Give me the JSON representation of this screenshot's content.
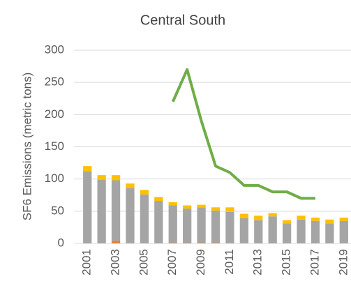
{
  "chart_data": {
    "type": "bar",
    "stacked": true,
    "title": "Central South",
    "y_label": "SF6 Emissions (metric tons)",
    "categories": [
      "2001",
      null,
      "2003",
      null,
      "2005",
      null,
      "2007",
      null,
      "2009",
      null,
      "2011",
      null,
      "2013",
      null,
      "2015",
      null,
      "2017",
      null,
      "2019"
    ],
    "ylim": [
      0,
      300
    ],
    "yticks": [
      0,
      50,
      100,
      150,
      200,
      250,
      300
    ],
    "grid": true,
    "series": [
      {
        "type": "bar",
        "color": "#ed7d31",
        "values": [
          0,
          0,
          4,
          0,
          0,
          0,
          1,
          1,
          1,
          1,
          0,
          0,
          0,
          0,
          0,
          0,
          0,
          0,
          0
        ]
      },
      {
        "type": "bar",
        "color": "#a5a5a5",
        "values": [
          112,
          99,
          94,
          86,
          76,
          66,
          58,
          53,
          55,
          50,
          49,
          39,
          36,
          42,
          31,
          37,
          35,
          31,
          35
        ]
      },
      {
        "type": "bar",
        "color": "#ffc000",
        "values": [
          8,
          7,
          8,
          7,
          7,
          6,
          5,
          5,
          4,
          5,
          7,
          7,
          7,
          5,
          5,
          6,
          5,
          6,
          5
        ]
      },
      {
        "type": "line",
        "color": "#70ad47",
        "values": [
          null,
          null,
          null,
          null,
          null,
          null,
          220,
          270,
          190,
          120,
          110,
          90,
          90,
          80,
          80,
          70,
          70,
          null,
          null
        ]
      }
    ]
  }
}
